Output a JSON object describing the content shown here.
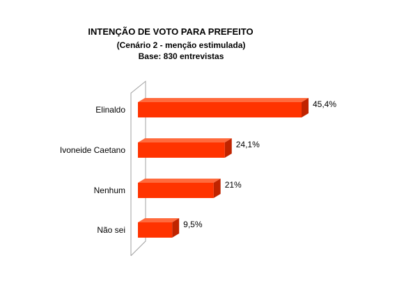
{
  "chart_data": {
    "type": "bar",
    "orientation": "horizontal",
    "title": "INTENÇÃO DE VOTO PARA PREFEITO",
    "subtitle": "(Cenário 2 - menção estimulada)",
    "note": "Base: 830 entrevistas",
    "categories": [
      "Elinaldo",
      "Ivoneide Caetano",
      "Nenhum",
      "Não sei"
    ],
    "values": [
      45.4,
      24.1,
      21,
      9.5
    ],
    "value_labels": [
      "45,4%",
      "24,1%",
      "21%",
      "9,5%"
    ],
    "xlim": [
      0,
      50
    ],
    "grid": false,
    "legend": "none",
    "colors": {
      "bar": "#ff3300",
      "bar_top": "#ff6a3d",
      "bar_side": "#c02400",
      "axis": "#a0a0a0"
    }
  }
}
